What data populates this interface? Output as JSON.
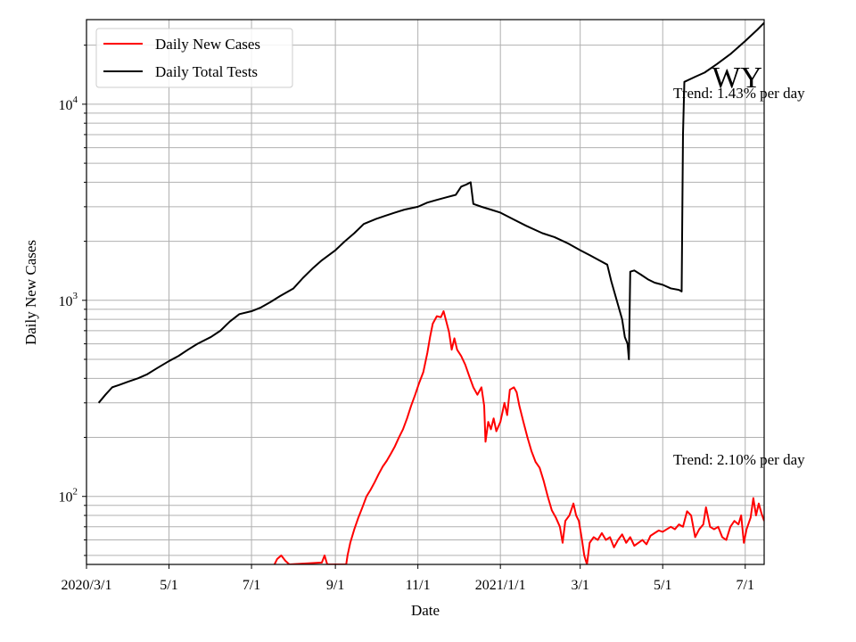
{
  "chart_data": {
    "type": "line",
    "title": "",
    "state_label": "WY",
    "xlabel": "Date",
    "ylabel": "Daily New Cases",
    "y_scale": "log",
    "ylim": [
      45,
      27000
    ],
    "xlim": [
      "2020-03-01",
      "2021-07-15"
    ],
    "grid": true,
    "legend_position": "top-left",
    "x_ticks": [
      {
        "date": "2020-03-01",
        "label": "2020/3/1"
      },
      {
        "date": "2020-05-01",
        "label": "5/1"
      },
      {
        "date": "2020-07-01",
        "label": "7/1"
      },
      {
        "date": "2020-09-01",
        "label": "9/1"
      },
      {
        "date": "2020-11-01",
        "label": "11/1"
      },
      {
        "date": "2021-01-01",
        "label": "2021/1/1"
      },
      {
        "date": "2021-03-01",
        "label": "3/1"
      },
      {
        "date": "2021-05-01",
        "label": "5/1"
      },
      {
        "date": "2021-07-01",
        "label": "7/1"
      }
    ],
    "y_major_ticks": [
      {
        "value": 100,
        "base": "10",
        "exp": "2"
      },
      {
        "value": 1000,
        "base": "10",
        "exp": "3"
      },
      {
        "value": 10000,
        "base": "10",
        "exp": "4"
      }
    ],
    "annotations": [
      {
        "text": "Trend: 1.43% per day",
        "series": "Daily Total Tests"
      },
      {
        "text": "Trend: 2.10% per day",
        "series": "Daily New Cases"
      }
    ],
    "series": [
      {
        "name": "Daily New Cases",
        "color": "#ff0000",
        "points": [
          [
            "2020-07-18",
            45
          ],
          [
            "2020-07-20",
            48
          ],
          [
            "2020-07-23",
            50
          ],
          [
            "2020-07-26",
            47
          ],
          [
            "2020-07-29",
            45
          ],
          [
            "2020-08-22",
            46
          ],
          [
            "2020-08-24",
            50
          ],
          [
            "2020-08-26",
            45
          ],
          [
            "2020-09-09",
            45
          ],
          [
            "2020-09-10",
            50
          ],
          [
            "2020-09-12",
            58
          ],
          [
            "2020-09-15",
            68
          ],
          [
            "2020-09-18",
            78
          ],
          [
            "2020-09-21",
            88
          ],
          [
            "2020-09-24",
            100
          ],
          [
            "2020-09-27",
            108
          ],
          [
            "2020-09-30",
            118
          ],
          [
            "2020-10-03",
            130
          ],
          [
            "2020-10-06",
            142
          ],
          [
            "2020-10-09",
            152
          ],
          [
            "2020-10-12",
            165
          ],
          [
            "2020-10-15",
            180
          ],
          [
            "2020-10-18",
            200
          ],
          [
            "2020-10-21",
            220
          ],
          [
            "2020-10-24",
            250
          ],
          [
            "2020-10-27",
            290
          ],
          [
            "2020-10-30",
            330
          ],
          [
            "2020-11-02",
            380
          ],
          [
            "2020-11-05",
            430
          ],
          [
            "2020-11-08",
            540
          ],
          [
            "2020-11-10",
            650
          ],
          [
            "2020-11-12",
            760
          ],
          [
            "2020-11-15",
            830
          ],
          [
            "2020-11-18",
            820
          ],
          [
            "2020-11-20",
            880
          ],
          [
            "2020-11-22",
            780
          ],
          [
            "2020-11-24",
            690
          ],
          [
            "2020-11-26",
            560
          ],
          [
            "2020-11-28",
            640
          ],
          [
            "2020-11-30",
            560
          ],
          [
            "2020-12-03",
            520
          ],
          [
            "2020-12-06",
            470
          ],
          [
            "2020-12-09",
            410
          ],
          [
            "2020-12-12",
            360
          ],
          [
            "2020-12-15",
            330
          ],
          [
            "2020-12-18",
            360
          ],
          [
            "2020-12-20",
            290
          ],
          [
            "2020-12-21",
            190
          ],
          [
            "2020-12-23",
            240
          ],
          [
            "2020-12-25",
            220
          ],
          [
            "2020-12-27",
            250
          ],
          [
            "2020-12-29",
            215
          ],
          [
            "2021-01-01",
            240
          ],
          [
            "2021-01-04",
            300
          ],
          [
            "2021-01-06",
            260
          ],
          [
            "2021-01-08",
            350
          ],
          [
            "2021-01-11",
            360
          ],
          [
            "2021-01-13",
            340
          ],
          [
            "2021-01-15",
            290
          ],
          [
            "2021-01-18",
            240
          ],
          [
            "2021-01-21",
            200
          ],
          [
            "2021-01-24",
            170
          ],
          [
            "2021-01-27",
            150
          ],
          [
            "2021-01-30",
            140
          ],
          [
            "2021-02-02",
            120
          ],
          [
            "2021-02-05",
            100
          ],
          [
            "2021-02-08",
            85
          ],
          [
            "2021-02-11",
            78
          ],
          [
            "2021-02-14",
            70
          ],
          [
            "2021-02-16",
            58
          ],
          [
            "2021-02-18",
            75
          ],
          [
            "2021-02-21",
            80
          ],
          [
            "2021-02-24",
            92
          ],
          [
            "2021-02-26",
            80
          ],
          [
            "2021-02-28",
            75
          ],
          [
            "2021-03-02",
            62
          ],
          [
            "2021-03-04",
            50
          ],
          [
            "2021-03-06",
            45
          ],
          [
            "2021-03-08",
            58
          ],
          [
            "2021-03-11",
            62
          ],
          [
            "2021-03-14",
            60
          ],
          [
            "2021-03-17",
            65
          ],
          [
            "2021-03-20",
            60
          ],
          [
            "2021-03-23",
            62
          ],
          [
            "2021-03-26",
            55
          ],
          [
            "2021-03-29",
            60
          ],
          [
            "2021-04-01",
            64
          ],
          [
            "2021-04-04",
            58
          ],
          [
            "2021-04-07",
            62
          ],
          [
            "2021-04-10",
            56
          ],
          [
            "2021-04-13",
            58
          ],
          [
            "2021-04-16",
            60
          ],
          [
            "2021-04-19",
            57
          ],
          [
            "2021-04-22",
            63
          ],
          [
            "2021-04-25",
            65
          ],
          [
            "2021-04-28",
            67
          ],
          [
            "2021-05-01",
            66
          ],
          [
            "2021-05-04",
            68
          ],
          [
            "2021-05-07",
            70
          ],
          [
            "2021-05-10",
            68
          ],
          [
            "2021-05-13",
            72
          ],
          [
            "2021-05-16",
            70
          ],
          [
            "2021-05-19",
            84
          ],
          [
            "2021-05-22",
            80
          ],
          [
            "2021-05-25",
            62
          ],
          [
            "2021-05-28",
            68
          ],
          [
            "2021-05-31",
            72
          ],
          [
            "2021-06-02",
            88
          ],
          [
            "2021-06-05",
            70
          ],
          [
            "2021-06-08",
            68
          ],
          [
            "2021-06-11",
            70
          ],
          [
            "2021-06-14",
            62
          ],
          [
            "2021-06-17",
            60
          ],
          [
            "2021-06-20",
            70
          ],
          [
            "2021-06-23",
            75
          ],
          [
            "2021-06-26",
            72
          ],
          [
            "2021-06-28",
            80
          ],
          [
            "2021-06-30",
            58
          ],
          [
            "2021-07-02",
            68
          ],
          [
            "2021-07-05",
            78
          ],
          [
            "2021-07-07",
            98
          ],
          [
            "2021-07-09",
            80
          ],
          [
            "2021-07-11",
            92
          ],
          [
            "2021-07-13",
            82
          ],
          [
            "2021-07-15",
            75
          ]
        ]
      },
      {
        "name": "Daily Total Tests",
        "color": "#000000",
        "points": [
          [
            "2020-03-10",
            300
          ],
          [
            "2020-03-15",
            330
          ],
          [
            "2020-03-20",
            360
          ],
          [
            "2020-03-25",
            370
          ],
          [
            "2020-04-01",
            385
          ],
          [
            "2020-04-08",
            400
          ],
          [
            "2020-04-15",
            420
          ],
          [
            "2020-04-22",
            450
          ],
          [
            "2020-05-01",
            490
          ],
          [
            "2020-05-08",
            520
          ],
          [
            "2020-05-15",
            560
          ],
          [
            "2020-05-22",
            600
          ],
          [
            "2020-06-01",
            650
          ],
          [
            "2020-06-08",
            700
          ],
          [
            "2020-06-15",
            780
          ],
          [
            "2020-06-22",
            850
          ],
          [
            "2020-07-01",
            880
          ],
          [
            "2020-07-08",
            920
          ],
          [
            "2020-07-15",
            980
          ],
          [
            "2020-07-22",
            1050
          ],
          [
            "2020-08-01",
            1150
          ],
          [
            "2020-08-08",
            1300
          ],
          [
            "2020-08-15",
            1450
          ],
          [
            "2020-08-22",
            1600
          ],
          [
            "2020-09-01",
            1800
          ],
          [
            "2020-09-08",
            2000
          ],
          [
            "2020-09-15",
            2200
          ],
          [
            "2020-09-22",
            2450
          ],
          [
            "2020-10-01",
            2600
          ],
          [
            "2020-10-08",
            2700
          ],
          [
            "2020-10-15",
            2800
          ],
          [
            "2020-10-22",
            2900
          ],
          [
            "2020-11-01",
            3000
          ],
          [
            "2020-11-08",
            3150
          ],
          [
            "2020-11-15",
            3250
          ],
          [
            "2020-11-22",
            3350
          ],
          [
            "2020-11-29",
            3450
          ],
          [
            "2020-12-03",
            3800
          ],
          [
            "2020-12-07",
            3900
          ],
          [
            "2020-12-10",
            4000
          ],
          [
            "2020-12-12",
            3100
          ],
          [
            "2020-12-18",
            3000
          ],
          [
            "2020-12-25",
            2900
          ],
          [
            "2021-01-01",
            2800
          ],
          [
            "2021-01-10",
            2600
          ],
          [
            "2021-01-20",
            2400
          ],
          [
            "2021-02-01",
            2200
          ],
          [
            "2021-02-10",
            2100
          ],
          [
            "2021-02-20",
            1950
          ],
          [
            "2021-03-01",
            1800
          ],
          [
            "2021-03-08",
            1700
          ],
          [
            "2021-03-15",
            1600
          ],
          [
            "2021-03-21",
            1520
          ],
          [
            "2021-03-24",
            1250
          ],
          [
            "2021-03-28",
            1000
          ],
          [
            "2021-04-01",
            800
          ],
          [
            "2021-04-03",
            650
          ],
          [
            "2021-04-05",
            600
          ],
          [
            "2021-04-06",
            500
          ],
          [
            "2021-04-07",
            1400
          ],
          [
            "2021-04-10",
            1420
          ],
          [
            "2021-04-15",
            1350
          ],
          [
            "2021-04-20",
            1280
          ],
          [
            "2021-04-25",
            1230
          ],
          [
            "2021-05-01",
            1200
          ],
          [
            "2021-05-07",
            1150
          ],
          [
            "2021-05-13",
            1130
          ],
          [
            "2021-05-15",
            1110
          ],
          [
            "2021-05-16",
            7000
          ],
          [
            "2021-05-17",
            13000
          ],
          [
            "2021-05-25",
            13800
          ],
          [
            "2021-06-01",
            14500
          ],
          [
            "2021-06-10",
            16000
          ],
          [
            "2021-06-20",
            18000
          ],
          [
            "2021-07-01",
            21000
          ],
          [
            "2021-07-10",
            24000
          ],
          [
            "2021-07-15",
            26000
          ]
        ]
      }
    ]
  }
}
